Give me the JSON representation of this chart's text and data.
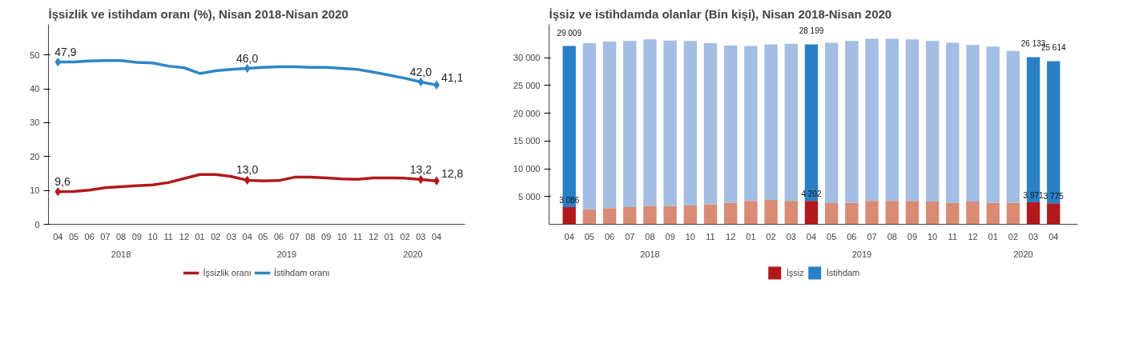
{
  "chart_data": [
    {
      "type": "line",
      "title": "İşsizlik ve istihdam oranı (%), Nisan 2018-Nisan 2020",
      "categories": [
        "04",
        "05",
        "06",
        "07",
        "08",
        "09",
        "10",
        "11",
        "12",
        "01",
        "02",
        "03",
        "04",
        "05",
        "06",
        "07",
        "08",
        "09",
        "10",
        "11",
        "12",
        "01",
        "02",
        "03",
        "04"
      ],
      "annotations": [
        "2018",
        "2019",
        "2020"
      ],
      "series": [
        {
          "name": "İşsizlik oranı",
          "color": "#b2191d",
          "values": [
            9.6,
            9.7,
            10.1,
            10.8,
            11.1,
            11.4,
            11.6,
            12.3,
            13.5,
            14.7,
            14.7,
            14.1,
            13.0,
            12.8,
            12.9,
            13.9,
            13.9,
            13.7,
            13.4,
            13.3,
            13.7,
            13.7,
            13.6,
            13.2,
            12.8
          ],
          "value_labels": [
            "9,6",
            null,
            null,
            null,
            null,
            null,
            null,
            null,
            null,
            null,
            null,
            null,
            "13,0",
            null,
            null,
            null,
            null,
            null,
            null,
            null,
            null,
            null,
            null,
            "13,2",
            "12,8"
          ]
        },
        {
          "name": "İstihdam oranı",
          "color": "#2e86c8",
          "values": [
            47.9,
            47.9,
            48.2,
            48.3,
            48.3,
            47.8,
            47.6,
            46.7,
            46.2,
            44.5,
            45.3,
            45.7,
            46.0,
            46.3,
            46.5,
            46.5,
            46.3,
            46.3,
            46.0,
            45.7,
            44.9,
            44.0,
            43.1,
            42.0,
            41.1
          ],
          "value_labels": [
            "47,9",
            null,
            null,
            null,
            null,
            null,
            null,
            null,
            null,
            null,
            null,
            null,
            "46,0",
            null,
            null,
            null,
            null,
            null,
            null,
            null,
            null,
            null,
            null,
            "42,0",
            "41,1"
          ]
        }
      ],
      "ylim": [
        0,
        59
      ],
      "yticks": [
        0,
        10,
        20,
        30,
        40,
        50
      ],
      "grid": false,
      "legend": "bottom",
      "line_style": "solid"
    },
    {
      "type": "bar",
      "stacked": true,
      "title": "İşsiz ve istihdamda olanlar (Bin kişi), Nisan 2018-Nisan 2020",
      "categories": [
        "04",
        "05",
        "06",
        "07",
        "08",
        "09",
        "10",
        "11",
        "12",
        "01",
        "02",
        "03",
        "04",
        "05",
        "06",
        "07",
        "08",
        "09",
        "10",
        "11",
        "12",
        "01",
        "02",
        "03",
        "04"
      ],
      "annotations": [
        "2018",
        "2019",
        "2020"
      ],
      "series": [
        {
          "name": "İşsiz",
          "color": "#b2191d",
          "values": [
            3086,
            2700,
            2900,
            3100,
            3300,
            3300,
            3400,
            3600,
            3900,
            4200,
            4400,
            4200,
            4202,
            3800,
            3900,
            4200,
            4200,
            4200,
            4100,
            3900,
            4100,
            3900,
            3900,
            3971,
            3775
          ],
          "colors": [
            "#b2191d",
            "#d98b74",
            "#d98b74",
            "#d98b74",
            "#d98b74",
            "#d98b74",
            "#d98b74",
            "#d98b74",
            "#d98b74",
            "#d98b74",
            "#d98b74",
            "#d98b74",
            "#b2191d",
            "#d98b74",
            "#d98b74",
            "#d98b74",
            "#d98b74",
            "#d98b74",
            "#d98b74",
            "#d98b74",
            "#d98b74",
            "#d98b74",
            "#d98b74",
            "#b2191d",
            "#b2191d"
          ],
          "value_labels": [
            "3 086",
            null,
            null,
            null,
            null,
            null,
            null,
            null,
            null,
            null,
            null,
            null,
            "4 202",
            null,
            null,
            null,
            null,
            null,
            null,
            null,
            null,
            null,
            null,
            "3 971",
            "3 775"
          ]
        },
        {
          "name": "İstihdam",
          "color": "#2a7fc5",
          "values": [
            29009,
            29900,
            30000,
            29900,
            30000,
            29800,
            29600,
            29000,
            28300,
            27900,
            28000,
            28300,
            28199,
            28900,
            29100,
            29200,
            29200,
            29100,
            28900,
            28800,
            28200,
            28100,
            27300,
            26133,
            25614
          ],
          "colors": [
            "#2a7fc5",
            "#a4bde2",
            "#a4bde2",
            "#a4bde2",
            "#a4bde2",
            "#a4bde2",
            "#a4bde2",
            "#a4bde2",
            "#a4bde2",
            "#a4bde2",
            "#a4bde2",
            "#a4bde2",
            "#2a7fc5",
            "#a4bde2",
            "#a4bde2",
            "#a4bde2",
            "#a4bde2",
            "#a4bde2",
            "#a4bde2",
            "#a4bde2",
            "#a4bde2",
            "#a4bde2",
            "#a4bde2",
            "#2a7fc5",
            "#2a7fc5"
          ],
          "value_labels": [
            "29 009",
            null,
            null,
            null,
            null,
            null,
            null,
            null,
            null,
            null,
            null,
            null,
            "28 199",
            null,
            null,
            null,
            null,
            null,
            null,
            null,
            null,
            null,
            null,
            "26 133",
            "25 614"
          ]
        }
      ],
      "ylim": [
        0,
        36000
      ],
      "yticks": [
        {
          "value": 5000,
          "label": "5 000"
        },
        {
          "value": 10000,
          "label": "10 000"
        },
        {
          "value": 15000,
          "label": "15 000"
        },
        {
          "value": 20000,
          "label": "20 000"
        },
        {
          "value": 25000,
          "label": "25 000"
        },
        {
          "value": 30000,
          "label": "30 000"
        }
      ],
      "grid": false,
      "legend": "bottom"
    }
  ]
}
